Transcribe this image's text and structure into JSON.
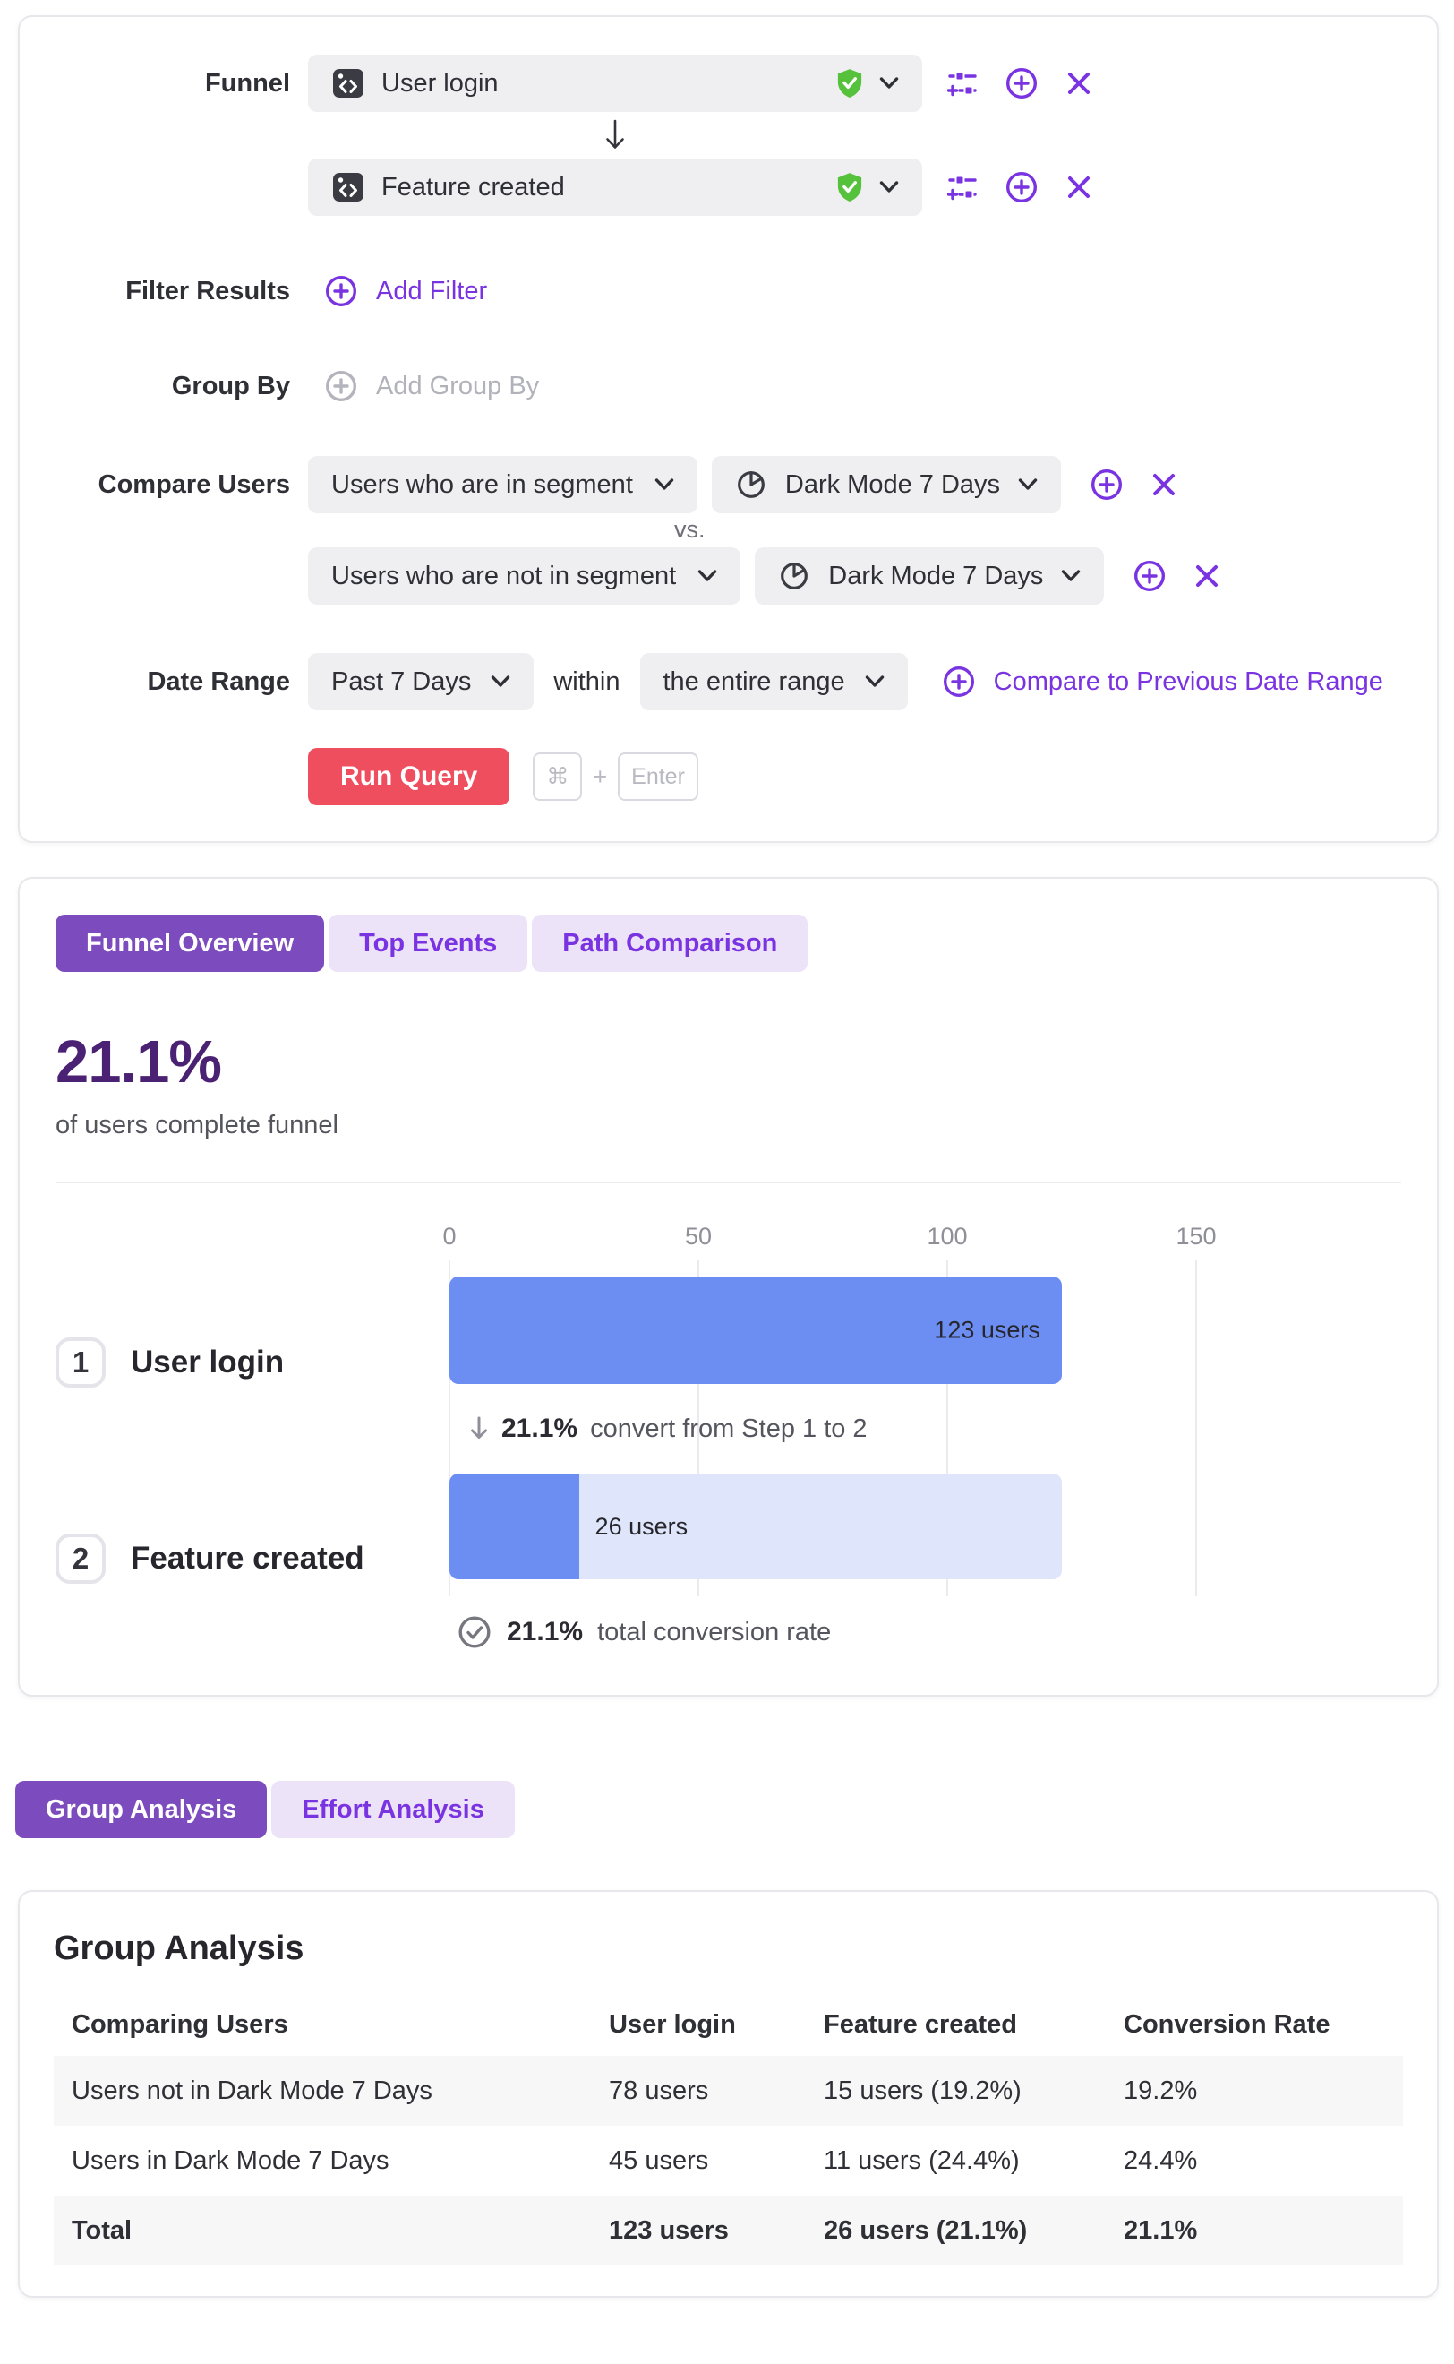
{
  "colors": {
    "accent_purple": "#7a33e0",
    "active_tab_purple": "#7c4bbd",
    "headline_purple": "#4b2173",
    "bar_blue": "#6c8ef3",
    "bar_light_blue": "#dfe6fb",
    "run_query_red": "#ef4e5e",
    "verified_green": "#56c23c",
    "pill_gray": "#efeff2",
    "stripe_gray": "#f7f7f8"
  },
  "query_builder": {
    "funnel_label": "Funnel",
    "steps": [
      {
        "event": "User login"
      },
      {
        "event": "Feature created"
      }
    ],
    "filter_results_label": "Filter Results",
    "add_filter": "Add Filter",
    "group_by_label": "Group By",
    "add_group_by": "Add Group By",
    "compare_users_label": "Compare Users",
    "compare_rows": [
      {
        "relation": "Users who are in segment",
        "segment": "Dark Mode 7 Days"
      },
      {
        "relation": "Users who are not in segment",
        "segment": "Dark Mode 7 Days"
      }
    ],
    "vs_label": "vs.",
    "date_range_label": "Date Range",
    "date_range": "Past 7 Days",
    "within_label": "within",
    "date_scope": "the entire range",
    "compare_previous": "Compare to Previous Date Range",
    "run_query": "Run Query",
    "shortcut_cmd": "⌘",
    "shortcut_plus": "+",
    "shortcut_enter": "Enter"
  },
  "results_panel": {
    "tabs": [
      {
        "label": "Funnel Overview",
        "active": true
      },
      {
        "label": "Top Events",
        "active": false
      },
      {
        "label": "Path Comparison",
        "active": false
      }
    ],
    "headline": "21.1%",
    "headline_caption": "of users complete funnel"
  },
  "chart_data": {
    "type": "bar",
    "orientation": "horizontal",
    "title": "Funnel Overview",
    "x_axis_tick_labels": [
      "0",
      "50",
      "100",
      "150"
    ],
    "tick_values": [
      0,
      50,
      100,
      150
    ],
    "xlim": [
      0,
      172
    ],
    "grid": true,
    "steps": [
      {
        "index": "1",
        "label": "User login",
        "users": 123,
        "bar_label": "123 users"
      },
      {
        "index": "2",
        "label": "Feature created",
        "users": 26,
        "bar_label": "26 users"
      }
    ],
    "connector": {
      "pct": "21.1%",
      "text": "convert from Step 1 to 2"
    },
    "total": {
      "pct": "21.1%",
      "text": "total conversion rate"
    }
  },
  "analysis": {
    "tabs": [
      {
        "label": "Group Analysis",
        "active": true
      },
      {
        "label": "Effort Analysis",
        "active": false
      }
    ],
    "title": "Group Analysis",
    "table": {
      "columns": [
        "Comparing Users",
        "User login",
        "Feature created",
        "Conversion Rate"
      ],
      "rows": [
        {
          "cells": [
            "Users not in Dark Mode 7 Days",
            "78 users",
            "15 users (19.2%)",
            "19.2%"
          ]
        },
        {
          "cells": [
            "Users in Dark Mode 7 Days",
            "45 users",
            "11 users (24.4%)",
            "24.4%"
          ]
        },
        {
          "cells": [
            "Total",
            "123 users",
            "26 users (21.1%)",
            "21.1%"
          ]
        }
      ]
    }
  }
}
